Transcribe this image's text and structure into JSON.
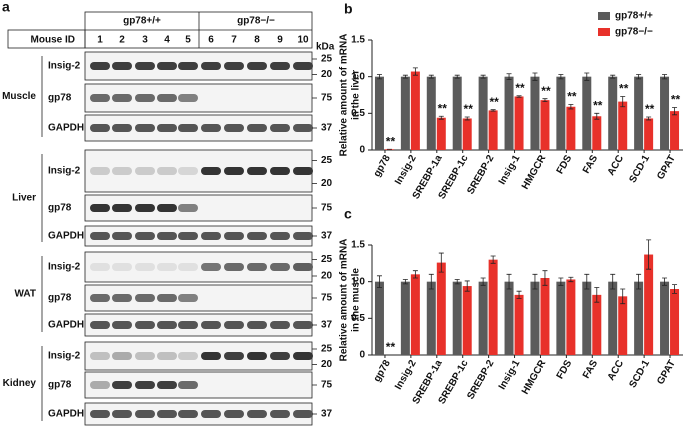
{
  "blot": {
    "panel_label": "a",
    "groups": [
      "gp78+/+",
      "gp78−/−"
    ],
    "id_label": "Mouse ID",
    "lanes": [
      1,
      2,
      3,
      4,
      5,
      6,
      7,
      8,
      9,
      10
    ],
    "unit": "kDa",
    "tissues": [
      {
        "name": "Muscle",
        "rows": [
          {
            "protein": "Insig-2",
            "markers": [
              25,
              20
            ]
          },
          {
            "protein": "gp78",
            "markers": [
              75
            ]
          },
          {
            "protein": "GAPDH",
            "markers": [
              37
            ]
          }
        ]
      },
      {
        "name": "Liver",
        "rows": [
          {
            "protein": "Insig-2",
            "markers": [
              25,
              20
            ]
          },
          {
            "protein": "gp78",
            "markers": [
              75
            ]
          },
          {
            "protein": "GAPDH",
            "markers": [
              37
            ]
          }
        ]
      },
      {
        "name": "WAT",
        "rows": [
          {
            "protein": "Insig-2",
            "markers": [
              25,
              20
            ]
          },
          {
            "protein": "gp78",
            "markers": [
              75
            ]
          },
          {
            "protein": "GAPDH",
            "markers": [
              37
            ]
          }
        ]
      },
      {
        "name": "Kidney",
        "rows": [
          {
            "protein": "Insig-2",
            "markers": [
              25,
              20
            ]
          },
          {
            "protein": "gp78",
            "markers": [
              75
            ]
          },
          {
            "protein": "GAPDH",
            "markers": [
              37
            ]
          }
        ]
      }
    ]
  },
  "chart_data": [
    {
      "type": "bar",
      "panel_label": "b",
      "ylabel": [
        "Relative amount of mRNA",
        "in the liver"
      ],
      "categories": [
        "gp78",
        "Insig-2",
        "SREBP-1a",
        "SREBP-1c",
        "SREBP-2",
        "Insig-1",
        "HMGCR",
        "FDS",
        "FAS",
        "ACC",
        "SCD-1",
        "GPAT"
      ],
      "series": [
        {
          "name": "gp78+/+",
          "color": "#5b5b5b",
          "values": [
            1.0,
            1.0,
            1.0,
            1.0,
            1.0,
            1.0,
            1.0,
            1.0,
            1.0,
            1.0,
            1.0,
            1.0
          ],
          "errors": [
            0.03,
            0.02,
            0.02,
            0.02,
            0.02,
            0.04,
            0.05,
            0.03,
            0.05,
            0.02,
            0.03,
            0.03
          ]
        },
        {
          "name": "gp78−/−",
          "color": "#e8312a",
          "values": [
            0.01,
            1.07,
            0.44,
            0.43,
            0.54,
            0.73,
            0.68,
            0.59,
            0.46,
            0.66,
            0.43,
            0.53
          ],
          "errors": [
            0.0,
            0.05,
            0.02,
            0.02,
            0.01,
            0.01,
            0.02,
            0.03,
            0.04,
            0.07,
            0.02,
            0.05
          ]
        }
      ],
      "significance": [
        "**",
        null,
        "**",
        "**",
        "**",
        "**",
        "**",
        "**",
        "**",
        "**",
        "**",
        "**"
      ],
      "ylim": [
        0,
        1.5
      ],
      "yticks": [
        0,
        0.5,
        {
          "value": 1,
          "label": "1.0"
        },
        1.5
      ],
      "legend": "upper right"
    },
    {
      "type": "bar",
      "panel_label": "c",
      "ylabel": [
        "Relative amount of mRNA",
        "in the muscle"
      ],
      "categories": [
        "gp78",
        "Insig-2",
        "SREBP-1a",
        "SREBP-1c",
        "SREBP-2",
        "Insig-1",
        "HMGCR",
        "FDS",
        "FAS",
        "ACC",
        "SCD-1",
        "GPAT"
      ],
      "series": [
        {
          "name": "gp78+/+",
          "color": "#5b5b5b",
          "values": [
            1.0,
            1.0,
            1.0,
            1.0,
            1.0,
            1.0,
            1.0,
            1.0,
            1.0,
            1.0,
            1.0,
            1.0
          ],
          "errors": [
            0.08,
            0.03,
            0.1,
            0.03,
            0.05,
            0.1,
            0.1,
            0.05,
            0.1,
            0.1,
            0.1,
            0.05
          ]
        },
        {
          "name": "gp78−/−",
          "color": "#e8312a",
          "values": [
            0.0,
            1.1,
            1.26,
            0.94,
            1.3,
            0.82,
            1.05,
            1.03,
            0.82,
            0.8,
            1.37,
            0.9
          ],
          "errors": [
            0.0,
            0.05,
            0.13,
            0.07,
            0.05,
            0.05,
            0.1,
            0.03,
            0.1,
            0.1,
            0.2,
            0.06
          ]
        }
      ],
      "significance": [
        "**",
        null,
        null,
        null,
        null,
        null,
        null,
        null,
        null,
        null,
        null,
        null
      ],
      "ylim": [
        0,
        1.5
      ],
      "yticks": [
        0,
        0.5,
        {
          "value": 1,
          "label": "1.0"
        },
        1.5
      ]
    }
  ]
}
